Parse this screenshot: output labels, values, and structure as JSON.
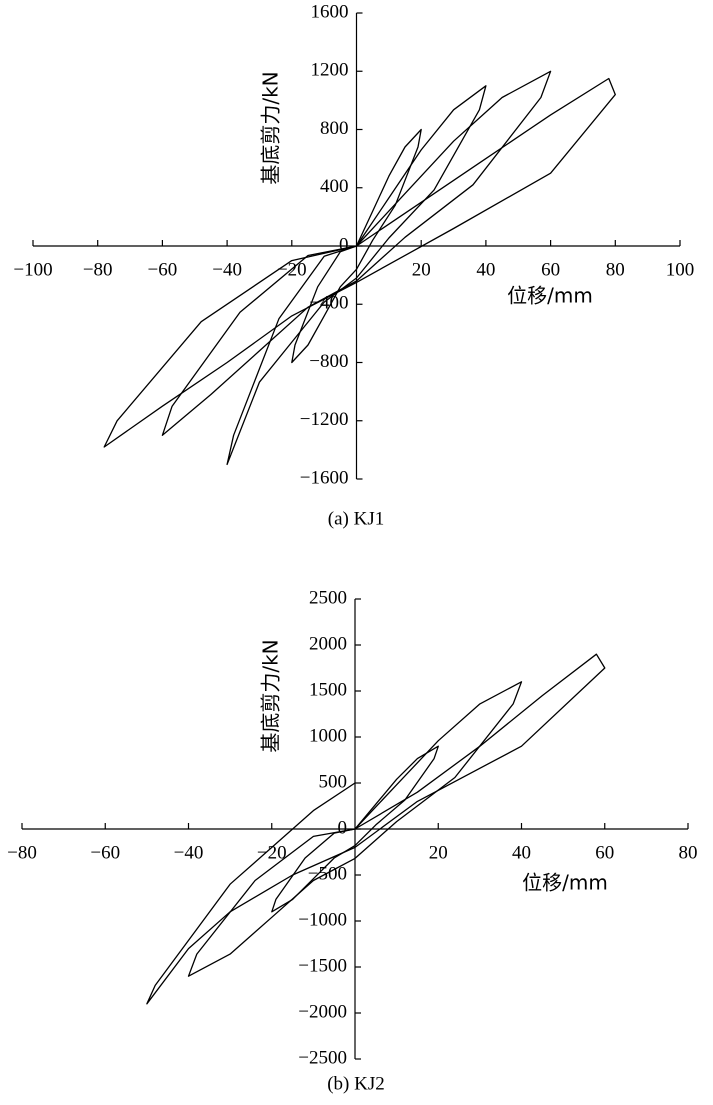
{
  "chart_data": [
    {
      "type": "line",
      "title": "(a) KJ1",
      "xlabel": "位移/mm",
      "ylabel": "基底剪力/kN",
      "xlim": [
        -100,
        100
      ],
      "ylim": [
        -1600,
        1600
      ],
      "xticks": [
        {
          "value": -100,
          "label": "−100"
        },
        {
          "value": -80,
          "label": "−80"
        },
        {
          "value": -60,
          "label": "−60"
        },
        {
          "value": -40,
          "label": "−40"
        },
        {
          "value": -20,
          "label": "−20"
        },
        20,
        40,
        60,
        80,
        100
      ],
      "yticks": [
        1600,
        1200,
        800,
        400,
        0,
        {
          "value": -400,
          "label": "−400"
        },
        {
          "value": -800,
          "label": "−800"
        },
        {
          "value": -1200,
          "label": "−1200"
        },
        {
          "value": -1600,
          "label": "−1600"
        }
      ],
      "series": [
        {
          "color": "#000000",
          "x": [
            0,
            5,
            10,
            15,
            20,
            19,
            12,
            5,
            0,
            -5,
            -10,
            -15,
            -20,
            -19,
            -12,
            -5,
            0
          ],
          "values": [
            0,
            240,
            480,
            680,
            800,
            680,
            280,
            40,
            -160,
            -280,
            -480,
            -680,
            -800,
            -680,
            -280,
            -40,
            0
          ]
        },
        {
          "color": "#000000",
          "x": [
            0,
            10,
            20,
            30,
            40,
            38,
            24,
            10,
            0,
            -10,
            -20,
            -30,
            -40,
            -38,
            -24,
            -10,
            0
          ],
          "values": [
            0,
            330,
            660,
            935,
            1100,
            935,
            385,
            55,
            -220,
            -385,
            -660,
            -935,
            -1500,
            -1300,
            -500,
            -70,
            0
          ]
        },
        {
          "color": "#000000",
          "x": [
            0,
            15,
            30,
            45,
            60,
            57,
            36,
            15,
            0,
            -15,
            -30,
            -45,
            -60,
            -57,
            -36,
            -15,
            0
          ],
          "values": [
            0,
            360,
            720,
            1020,
            1200,
            1020,
            420,
            60,
            -240,
            -420,
            -720,
            -1020,
            -1300,
            -1100,
            -455,
            -65,
            0
          ]
        },
        {
          "color": "#000000",
          "x": [
            0,
            20,
            40,
            60,
            78,
            80,
            60,
            30,
            0,
            -20,
            -40,
            -60,
            -78,
            -74,
            -48,
            -20,
            0
          ],
          "values": [
            0,
            300,
            600,
            900,
            1150,
            1040,
            500,
            120,
            -250,
            -480,
            -800,
            -1100,
            -1380,
            -1200,
            -520,
            -100,
            0
          ]
        }
      ]
    },
    {
      "type": "line",
      "title": "(b) KJ2",
      "xlabel": "位移/mm",
      "ylabel": "基底剪力/kN",
      "xlim": [
        -80,
        80
      ],
      "ylim": [
        -2500,
        2500
      ],
      "xticks": [
        {
          "value": -80,
          "label": "−80"
        },
        {
          "value": -60,
          "label": "−60"
        },
        {
          "value": -40,
          "label": "−40"
        },
        {
          "value": -20,
          "label": "−20"
        },
        20,
        40,
        60,
        80
      ],
      "yticks": [
        2500,
        2000,
        1500,
        1000,
        500,
        0,
        {
          "value": -500,
          "label": "−500"
        },
        {
          "value": -1000,
          "label": "−1000"
        },
        {
          "value": -1500,
          "label": "−1500"
        },
        {
          "value": -2000,
          "label": "−2000"
        },
        {
          "value": -2500,
          "label": "−2500"
        }
      ],
      "series": [
        {
          "color": "#000000",
          "x": [
            0,
            5,
            10,
            15,
            20,
            19,
            12,
            5,
            0,
            -5,
            -10,
            -15,
            -20,
            -19,
            -12,
            -5,
            0
          ],
          "values": [
            0,
            270,
            540,
            765,
            900,
            765,
            315,
            45,
            -180,
            -315,
            -540,
            -765,
            -900,
            -765,
            -315,
            -45,
            0
          ]
        },
        {
          "color": "#000000",
          "x": [
            0,
            10,
            20,
            30,
            40,
            38,
            24,
            10,
            0,
            -10,
            -20,
            -30,
            -40,
            -38,
            -24,
            -10,
            0
          ],
          "values": [
            0,
            480,
            960,
            1360,
            1600,
            1360,
            560,
            80,
            -320,
            -560,
            -960,
            -1360,
            -1600,
            -1360,
            -560,
            -80,
            0
          ]
        },
        {
          "color": "#000000",
          "x": [
            0,
            15,
            30,
            45,
            58,
            60,
            40,
            15,
            0,
            -15,
            -30,
            -40,
            -50,
            -48,
            -30,
            -10,
            0
          ],
          "values": [
            0,
            400,
            900,
            1450,
            1900,
            1750,
            900,
            300,
            -200,
            -500,
            -900,
            -1300,
            -1900,
            -1700,
            -600,
            200,
            500
          ]
        }
      ]
    }
  ]
}
